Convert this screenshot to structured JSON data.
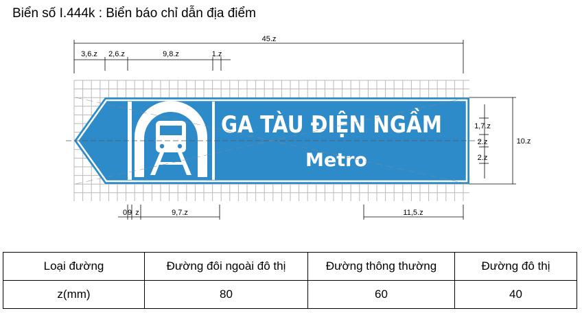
{
  "title": "Biển số I.444k : Biển báo chỉ dẫn địa điểm",
  "sign": {
    "main_text": "GA TÀU ĐIỆN NGẦM",
    "sub_text": "Metro",
    "background_color": "#2e8bc9",
    "border_color": "#ffffff",
    "icon": "metro-train-tunnel-icon",
    "arrow": "arrow-left-icon"
  },
  "dimensions": {
    "top_total": "45.z",
    "top_segments": [
      "3,6.z",
      "2,6.z",
      "9,8.z",
      "1.z"
    ],
    "right_total": "10.z",
    "right_segments": [
      "1,7.z",
      "2.z",
      "2.z"
    ],
    "bottom_left_segments": [
      "0",
      "9",
      "z",
      "9,7.z"
    ],
    "bottom_right_segment": "11,5.z"
  },
  "table": {
    "header": [
      "Loại đường",
      "Đường đôi ngoài đô thị",
      "Đường thông thường",
      "Đường đô thị"
    ],
    "row": [
      "z(mm)",
      "80",
      "60",
      "40"
    ]
  }
}
